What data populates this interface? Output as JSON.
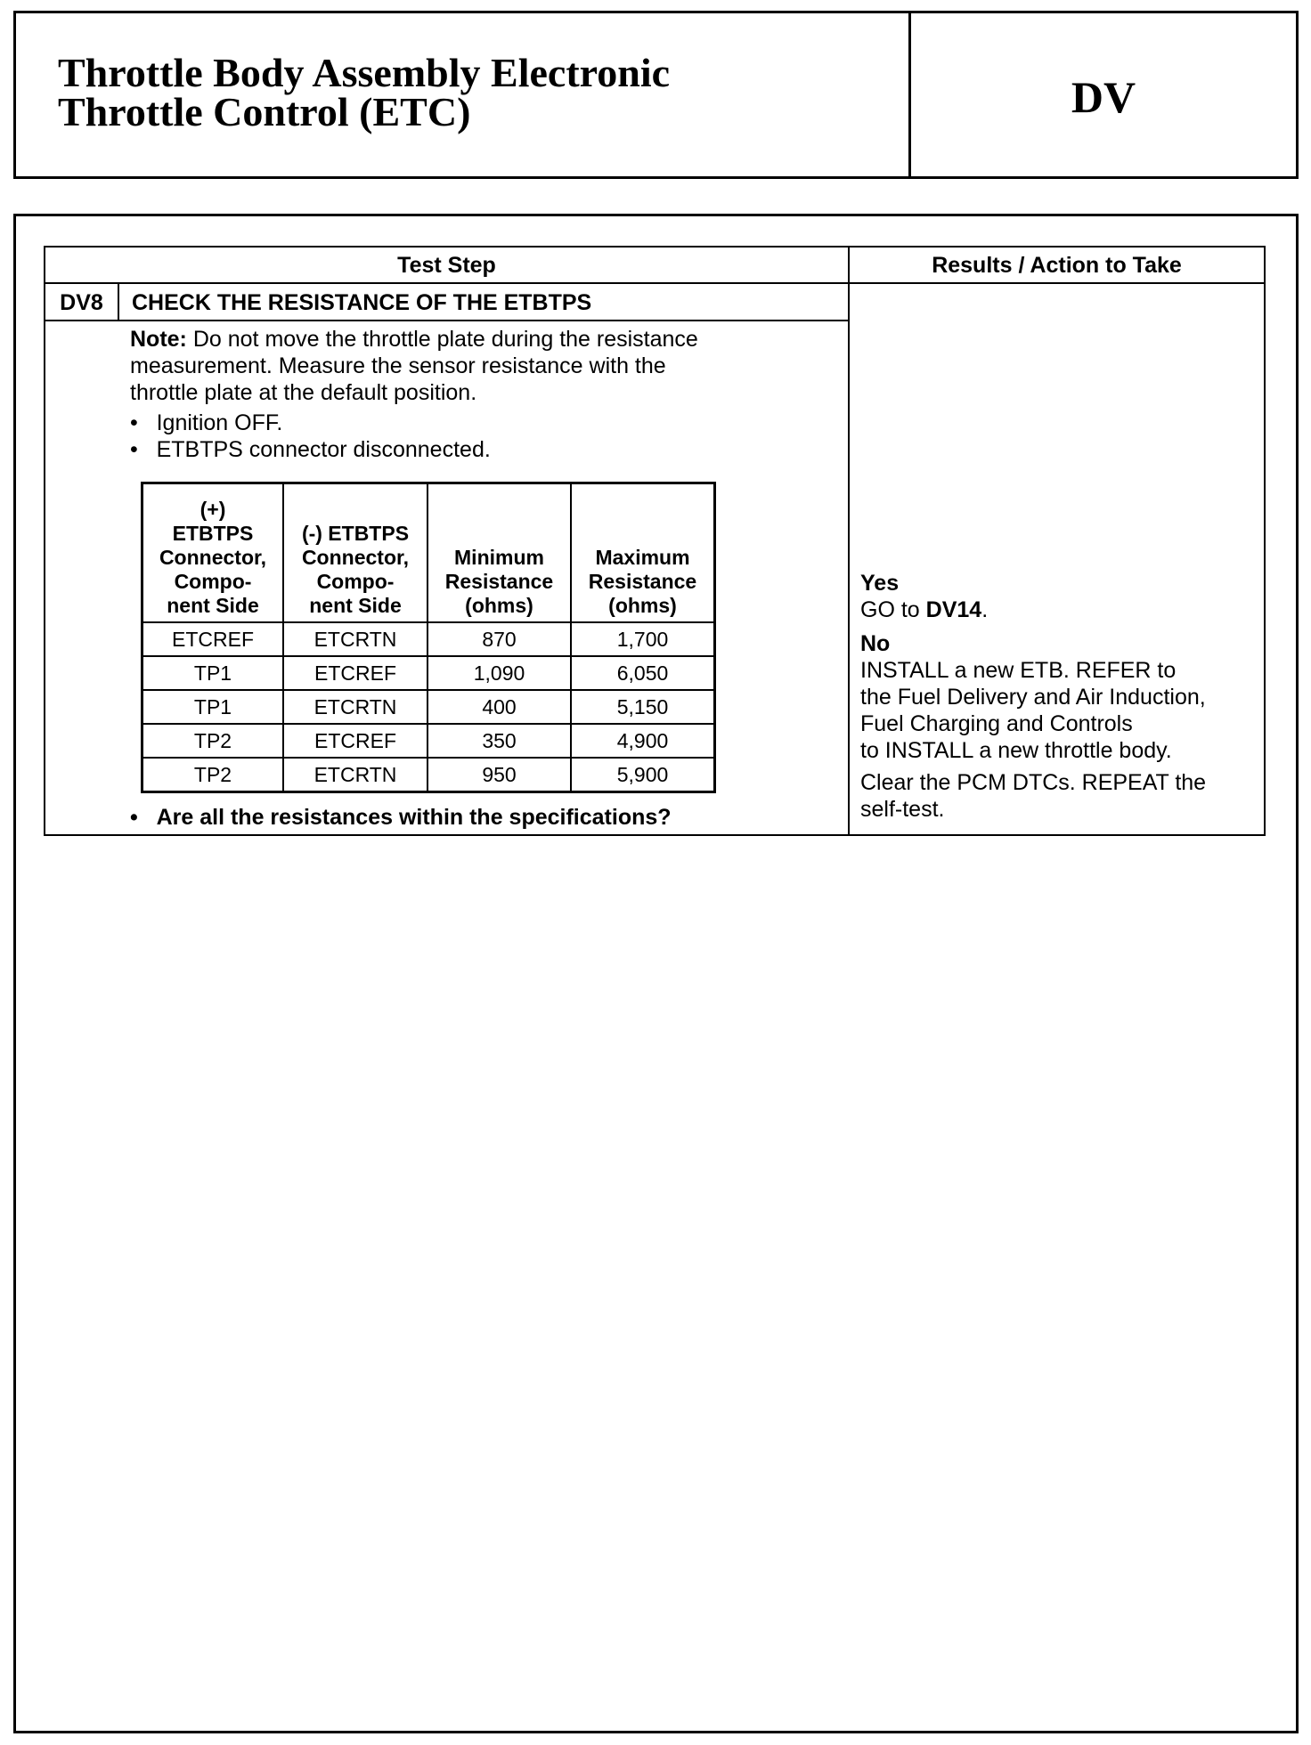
{
  "header": {
    "title_line1": "Throttle Body Assembly Electronic",
    "title_line2": "Throttle Control (ETC)",
    "section_code": "DV"
  },
  "table": {
    "col_test_step": "Test Step",
    "col_results": "Results / Action to Take",
    "step_id": "DV8",
    "step_title": "CHECK THE RESISTANCE OF THE ETBTPS",
    "note_label": "Note:",
    "note_lines": [
      " Do not move the throttle plate during the resistance",
      "measurement. Measure the sensor resistance with the",
      "throttle plate at the default position."
    ],
    "bullets": [
      "Ignition OFF.",
      "ETBTPS connector disconnected."
    ],
    "question": "Are all the resistances within the specifications?",
    "spec_headers": [
      [
        "(+)",
        "ETBTPS",
        "Connector,",
        "Compo-",
        "nent Side"
      ],
      [
        "(-) ETBTPS",
        "Connector,",
        "Compo-",
        "nent Side"
      ],
      [
        "Minimum",
        "Resistance",
        "(ohms)"
      ],
      [
        "Maximum",
        "Resistance",
        "(ohms)"
      ]
    ],
    "spec_rows": [
      [
        "ETCREF",
        "ETCRTN",
        "870",
        "1,700"
      ],
      [
        "TP1",
        "ETCREF",
        "1,090",
        "6,050"
      ],
      [
        "TP1",
        "ETCRTN",
        "400",
        "5,150"
      ],
      [
        "TP2",
        "ETCREF",
        "350",
        "4,900"
      ],
      [
        "TP2",
        "ETCRTN",
        "950",
        "5,900"
      ]
    ],
    "results": {
      "yes_label": "Yes",
      "yes_text": "GO to ",
      "yes_target": "DV14",
      "yes_end": ".",
      "no_label": "No",
      "no_lines": [
        "INSTALL a new ETB. REFER to",
        "the Fuel Delivery and Air Induction,",
        "Fuel Charging and Controls",
        "to INSTALL a new throttle body."
      ],
      "final_lines": [
        "Clear the PCM DTCs. REPEAT the",
        "self-test."
      ]
    }
  }
}
